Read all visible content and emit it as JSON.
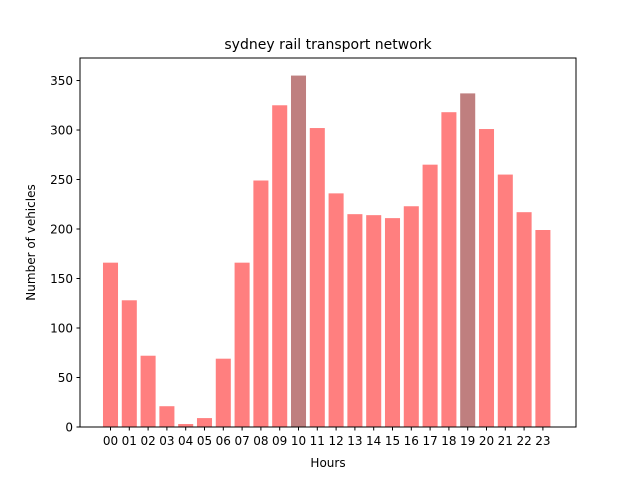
{
  "chart_data": {
    "type": "bar",
    "title": "sydney rail transport network",
    "xlabel": "Hours",
    "ylabel": "Number of vehicles",
    "categories": [
      "00",
      "01",
      "02",
      "03",
      "04",
      "05",
      "06",
      "07",
      "08",
      "09",
      "10",
      "11",
      "12",
      "13",
      "14",
      "15",
      "16",
      "17",
      "18",
      "19",
      "20",
      "21",
      "22",
      "23"
    ],
    "values": [
      166,
      128,
      72,
      21,
      3,
      9,
      69,
      166,
      249,
      325,
      355,
      302,
      236,
      215,
      214,
      211,
      223,
      265,
      318,
      337,
      301,
      255,
      217,
      199
    ],
    "highlighted": [
      "10",
      "19"
    ],
    "colors": {
      "bar": "#ff7f7f",
      "highlight": "#bf7f7f"
    },
    "ylim": [
      0,
      372.75
    ],
    "yticks": [
      0,
      50,
      100,
      150,
      200,
      250,
      300,
      350
    ],
    "grid": false,
    "legend": "none"
  }
}
